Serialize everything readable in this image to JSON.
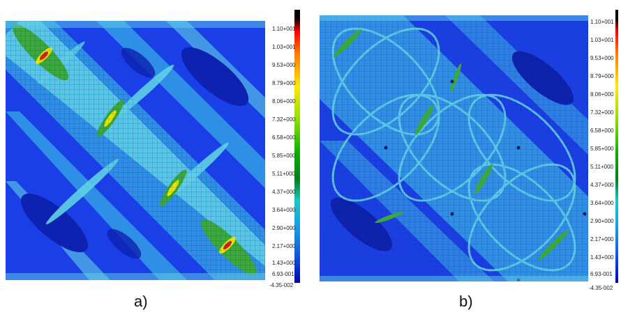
{
  "colors": {
    "scale_stops": [
      "#ff0000",
      "#ff7a00",
      "#ffe800",
      "#8fe000",
      "#10b000",
      "#007f1a",
      "#18c8c8",
      "#17a5e0",
      "#1476e0",
      "#0b3fd8",
      "#0000a8"
    ],
    "background_blue": "#1a3fe6",
    "mid_blue": "#2f8ee6",
    "light_cyan": "#5fd0e6",
    "green": "#3aa83a",
    "yellow": "#e6e600",
    "red": "#d22020",
    "dark_blue": "#0d22b0"
  },
  "panels": [
    {
      "caption": "a)",
      "scale_labels": [
        "1.10+001",
        "1.03+001",
        "9.53+000",
        "8.79+000",
        "8.06+000",
        "7.32+000",
        "6.58+000",
        "5.85+000",
        "5.11+000",
        "4.37+000",
        "3.64+000",
        "2.90+000",
        "2.17+000",
        "1.43+000",
        "6.93-001",
        "-4.35-002"
      ]
    },
    {
      "caption": "b)",
      "scale_labels": [
        "1.10+001",
        "1.03+001",
        "9.53+000",
        "8.79+000",
        "8.06+000",
        "7.32+000",
        "6.58+000",
        "5.85+000",
        "5.11+000",
        "4.37+000",
        "3.64+000",
        "2.90+000",
        "2.17+000",
        "1.43+000",
        "6.93-001",
        "-4.35-002"
      ]
    }
  ]
}
